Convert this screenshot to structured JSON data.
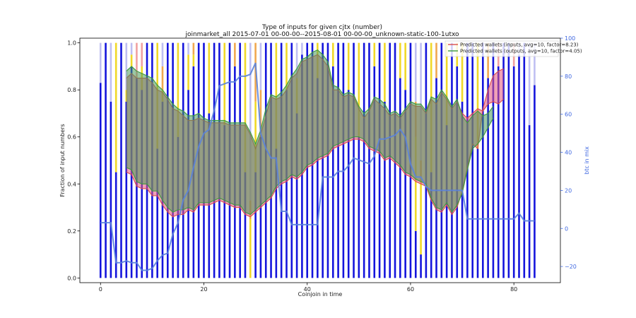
{
  "chart_data": {
    "type": "bar",
    "title": "Type of inputs for given cjtx (number)",
    "subtitle": "joinmarket_all 2015-07-01 00-00-00--2015-08-01 00-00-00_unknown-static-100-1utxo",
    "xlabel": "Coinjoin in time",
    "ylabel": "Fraction of input numbers",
    "y2label": "btc in mix",
    "xlim": [
      -4,
      89
    ],
    "ylim": [
      -0.02,
      1.02
    ],
    "y2lim": [
      -28.5,
      100
    ],
    "x_ticks": [
      "0",
      "20",
      "40",
      "60",
      "80"
    ],
    "y_ticks": [
      "0.0",
      "0.2",
      "0.4",
      "0.6",
      "0.8",
      "1.0"
    ],
    "y2_ticks": [
      "−20",
      "0",
      "20",
      "40",
      "60",
      "80",
      "100"
    ],
    "grid": false,
    "legend_position": "top-right",
    "colors": {
      "fresh_bar": "#1414dc",
      "light_bar": "#b4b4f0",
      "yellow_bar": "#f0d828",
      "orange_bar": "#f0a850",
      "pink_bar": "#f0a0a0",
      "inputs_line": "#d94c4c",
      "inputs_fill": "#e6557a",
      "outputs_line": "#3c9a3c",
      "outputs_fill": "#4a9a5a",
      "btc_line": "#5a82dc",
      "right_axis": "#4169e1"
    },
    "bars": {
      "x": [
        0,
        1,
        2,
        3,
        4,
        5,
        6,
        7,
        8,
        9,
        10,
        11,
        12,
        13,
        14,
        15,
        16,
        17,
        18,
        19,
        20,
        21,
        22,
        23,
        24,
        25,
        26,
        27,
        28,
        29,
        30,
        31,
        32,
        33,
        34,
        35,
        36,
        37,
        38,
        39,
        40,
        41,
        42,
        43,
        44,
        45,
        46,
        47,
        48,
        49,
        50,
        51,
        52,
        53,
        54,
        55,
        56,
        57,
        58,
        59,
        60,
        61,
        62,
        63,
        64,
        65,
        66,
        67,
        68,
        69,
        70,
        71,
        72,
        73,
        74,
        75,
        76,
        77,
        78,
        79,
        80,
        81,
        82,
        83,
        84
      ],
      "fresh": [
        0.83,
        1.0,
        0.75,
        0.45,
        1.0,
        0.75,
        0.9,
        0.85,
        0.8,
        1.0,
        1.0,
        0.55,
        0.75,
        1.0,
        1.0,
        0.6,
        1.0,
        0.8,
        0.9,
        1.0,
        1.0,
        0.7,
        1.0,
        1.0,
        0.65,
        1.0,
        0.9,
        1.0,
        0.45,
        0.0,
        0.45,
        0.6,
        1.0,
        1.0,
        0.55,
        1.0,
        0.8,
        1.0,
        0.7,
        0.95,
        1.0,
        1.0,
        0.85,
        1.0,
        1.0,
        0.9,
        1.0,
        1.0,
        0.8,
        1.0,
        0.6,
        1.0,
        1.0,
        0.9,
        1.0,
        0.75,
        1.0,
        1.0,
        0.85,
        0.8,
        1.0,
        0.2,
        0.1,
        1.0,
        0.45,
        0.85,
        1.0,
        0.65,
        1.0,
        0.9,
        0.75,
        1.0,
        1.0,
        0.55,
        1.0,
        0.85,
        1.0,
        0.9,
        1.0,
        1.0,
        0.9,
        0.95,
        1.0,
        0.65,
        0.82
      ],
      "yellow": [
        0,
        0,
        0,
        0.55,
        0,
        0.05,
        0.05,
        0,
        0.1,
        0,
        0,
        0.45,
        0.05,
        0,
        0,
        0.4,
        0,
        0.15,
        0.05,
        0,
        0,
        0.3,
        0,
        0,
        0.35,
        0,
        0,
        0,
        0.55,
        0.25,
        0.3,
        0,
        0,
        0,
        0.45,
        0,
        0.2,
        0,
        0.15,
        0,
        0,
        0,
        0.15,
        0,
        0,
        0.1,
        0,
        0,
        0.2,
        0,
        0.4,
        0,
        0,
        0.1,
        0,
        0.25,
        0,
        0,
        0.15,
        0.2,
        0,
        0.4,
        0.3,
        0,
        0.55,
        0,
        0,
        0.35,
        0,
        0.1,
        0.25,
        0,
        0,
        0.45,
        0,
        0,
        0,
        0,
        0,
        0,
        0,
        0,
        0,
        0,
        0
      ],
      "orange": [
        0,
        0,
        0,
        0,
        0,
        0,
        0,
        0,
        0,
        0,
        0,
        0,
        0.1,
        0,
        0,
        0,
        0,
        0,
        0.05,
        0,
        0,
        0,
        0,
        0,
        0,
        0,
        0.1,
        0,
        0,
        0.08,
        0.25,
        0.2,
        0,
        0,
        0,
        0,
        0,
        0,
        0,
        0,
        0,
        0,
        0,
        0,
        0,
        0,
        0,
        0,
        0,
        0,
        0,
        0,
        0,
        0,
        0,
        0,
        0,
        0,
        0,
        0,
        0,
        0.15,
        0.1,
        0,
        0,
        0.15,
        0,
        0,
        0,
        0,
        0,
        0,
        0,
        0,
        0,
        0.15,
        0,
        0,
        0,
        0,
        0,
        0,
        0,
        0,
        0
      ],
      "pink": [
        0,
        0,
        0,
        0,
        0,
        0,
        0,
        0.15,
        0.1,
        0,
        0,
        0,
        0,
        0,
        0,
        0,
        0,
        0,
        0,
        0,
        0,
        0,
        0,
        0,
        0,
        0,
        0,
        0,
        0,
        0,
        0,
        0,
        0,
        0,
        0,
        0,
        0,
        0,
        0,
        0,
        0,
        0,
        0,
        0,
        0,
        0,
        0,
        0,
        0,
        0,
        0,
        0,
        0,
        0,
        0,
        0,
        0,
        0,
        0,
        0,
        0,
        0,
        0,
        0,
        0,
        0,
        0,
        0,
        0,
        0,
        0,
        0,
        0,
        0,
        0,
        0,
        0,
        0.1,
        0,
        0,
        0.1,
        0,
        0,
        0,
        0
      ]
    },
    "series": [
      {
        "name": "Predicted wallets (inputs, avg=10, factor=8.23)",
        "x": [
          5,
          6,
          7,
          8,
          9,
          10,
          11,
          12,
          13,
          14,
          15,
          16,
          17,
          18,
          19,
          20,
          21,
          22,
          23,
          24,
          25,
          26,
          27,
          28,
          29,
          30,
          31,
          32,
          33,
          34,
          35,
          36,
          37,
          38,
          39,
          40,
          41,
          42,
          43,
          44,
          45,
          46,
          47,
          48,
          49,
          50,
          51,
          52,
          53,
          54,
          55,
          56,
          57,
          58,
          59,
          60,
          61,
          62,
          63,
          64,
          65,
          66,
          67,
          68,
          69,
          70,
          71,
          72,
          73,
          74,
          75,
          76,
          77,
          78
        ],
        "values": [
          0.45,
          0.44,
          0.39,
          0.38,
          0.38,
          0.35,
          0.35,
          0.31,
          0.28,
          0.26,
          0.27,
          0.27,
          0.29,
          0.28,
          0.31,
          0.31,
          0.31,
          0.32,
          0.33,
          0.32,
          0.31,
          0.3,
          0.3,
          0.27,
          0.26,
          0.28,
          0.3,
          0.32,
          0.34,
          0.38,
          0.4,
          0.41,
          0.43,
          0.42,
          0.44,
          0.47,
          0.48,
          0.5,
          0.51,
          0.52,
          0.55,
          0.56,
          0.57,
          0.58,
          0.59,
          0.59,
          0.58,
          0.55,
          0.54,
          0.53,
          0.5,
          0.51,
          0.49,
          0.47,
          0.44,
          0.43,
          0.41,
          0.4,
          0.39,
          0.33,
          0.29,
          0.28,
          0.31,
          0.27,
          0.3,
          0.37,
          0.47,
          0.57,
          0.55,
          0.72,
          0.8,
          0.86,
          0.88,
          0.89
        ],
        "upper": [
          0.85,
          0.87,
          0.85,
          0.85,
          0.85,
          0.83,
          0.8,
          0.79,
          0.76,
          0.72,
          0.71,
          0.69,
          0.67,
          0.67,
          0.68,
          0.67,
          0.66,
          0.66,
          0.66,
          0.66,
          0.65,
          0.65,
          0.65,
          0.65,
          0.61,
          0.55,
          0.61,
          0.69,
          0.77,
          0.76,
          0.77,
          0.8,
          0.85,
          0.87,
          0.92,
          0.93,
          0.94,
          0.95,
          0.93,
          0.9,
          0.8,
          0.8,
          0.77,
          0.78,
          0.77,
          0.72,
          0.68,
          0.71,
          0.76,
          0.74,
          0.72,
          0.69,
          0.7,
          0.68,
          0.71,
          0.74,
          0.73,
          0.73,
          0.7,
          0.76,
          0.74,
          0.79,
          0.76,
          0.72,
          0.75,
          0.7,
          0.68,
          0.7,
          0.72,
          0.71,
          0.74,
          0.75,
          0.74,
          0.76
        ]
      },
      {
        "name": "Predicted wallets (outputs, avg=10, factor=4.05)",
        "x": [
          5,
          6,
          7,
          8,
          9,
          10,
          11,
          12,
          13,
          14,
          15,
          16,
          17,
          18,
          19,
          20,
          21,
          22,
          23,
          24,
          25,
          26,
          27,
          28,
          29,
          30,
          31,
          32,
          33,
          34,
          35,
          36,
          37,
          38,
          39,
          40,
          41,
          42,
          43,
          44,
          45,
          46,
          47,
          48,
          49,
          50,
          51,
          52,
          53,
          54,
          55,
          56,
          57,
          58,
          59,
          60,
          61,
          62,
          63,
          64,
          65,
          66,
          67,
          68,
          69,
          70,
          71,
          72,
          73,
          74,
          75,
          76
        ],
        "values": [
          0.88,
          0.9,
          0.88,
          0.87,
          0.86,
          0.85,
          0.82,
          0.8,
          0.77,
          0.74,
          0.72,
          0.71,
          0.69,
          0.69,
          0.7,
          0.68,
          0.67,
          0.67,
          0.67,
          0.67,
          0.66,
          0.66,
          0.66,
          0.66,
          0.62,
          0.57,
          0.63,
          0.72,
          0.78,
          0.77,
          0.79,
          0.82,
          0.86,
          0.89,
          0.93,
          0.94,
          0.96,
          0.97,
          0.95,
          0.92,
          0.82,
          0.81,
          0.78,
          0.79,
          0.78,
          0.73,
          0.7,
          0.72,
          0.77,
          0.76,
          0.74,
          0.7,
          0.71,
          0.69,
          0.72,
          0.75,
          0.74,
          0.74,
          0.71,
          0.77,
          0.76,
          0.8,
          0.77,
          0.73,
          0.76,
          0.69,
          0.66,
          0.69,
          0.71,
          0.69,
          0.7,
          0.73
        ],
        "lower": [
          0.47,
          0.46,
          0.41,
          0.4,
          0.4,
          0.37,
          0.37,
          0.33,
          0.3,
          0.28,
          0.29,
          0.29,
          0.3,
          0.29,
          0.32,
          0.32,
          0.32,
          0.33,
          0.34,
          0.33,
          0.32,
          0.31,
          0.31,
          0.28,
          0.27,
          0.29,
          0.31,
          0.33,
          0.35,
          0.39,
          0.41,
          0.42,
          0.44,
          0.43,
          0.45,
          0.48,
          0.49,
          0.51,
          0.52,
          0.53,
          0.56,
          0.57,
          0.58,
          0.59,
          0.6,
          0.6,
          0.59,
          0.56,
          0.55,
          0.54,
          0.51,
          0.52,
          0.5,
          0.48,
          0.45,
          0.44,
          0.42,
          0.41,
          0.4,
          0.34,
          0.3,
          0.29,
          0.32,
          0.28,
          0.31,
          0.36,
          0.46,
          0.55,
          0.57,
          0.6,
          0.64,
          0.68
        ]
      },
      {
        "name": "btc in mix",
        "x": [
          0,
          1,
          2,
          3,
          4,
          5,
          6,
          7,
          8,
          9,
          10,
          11,
          12,
          13,
          14,
          15,
          16,
          17,
          18,
          19,
          20,
          21,
          22,
          23,
          24,
          25,
          26,
          27,
          28,
          29,
          30,
          31,
          32,
          33,
          34,
          35,
          36,
          37,
          38,
          39,
          40,
          41,
          42,
          43,
          44,
          45,
          46,
          47,
          48,
          49,
          50,
          51,
          52,
          53,
          54,
          55,
          56,
          57,
          58,
          59,
          60,
          61,
          62,
          63,
          64,
          65,
          66,
          67,
          68,
          69,
          70,
          71,
          72,
          73,
          74,
          75,
          76,
          77,
          78,
          79,
          80,
          81,
          82,
          83,
          84
        ],
        "values": [
          3,
          3,
          3,
          -18,
          -18,
          -17,
          -18,
          -18,
          -22,
          -22,
          -21,
          -17,
          -14,
          -13,
          -3,
          3,
          15,
          20,
          32,
          43,
          50,
          52,
          62,
          75,
          76,
          77,
          77,
          80,
          80,
          81,
          87,
          50,
          42,
          37,
          37,
          9,
          9,
          2,
          2,
          2,
          2,
          2,
          2,
          27,
          27,
          27,
          30,
          30,
          33,
          37,
          36,
          35,
          34,
          38,
          47,
          47,
          48,
          49,
          52,
          48,
          34,
          27,
          27,
          22,
          20,
          20,
          20,
          20,
          20,
          20,
          20,
          5,
          5,
          5,
          5,
          5,
          5,
          5,
          5,
          5,
          5,
          8,
          4,
          4,
          4
        ]
      }
    ]
  }
}
